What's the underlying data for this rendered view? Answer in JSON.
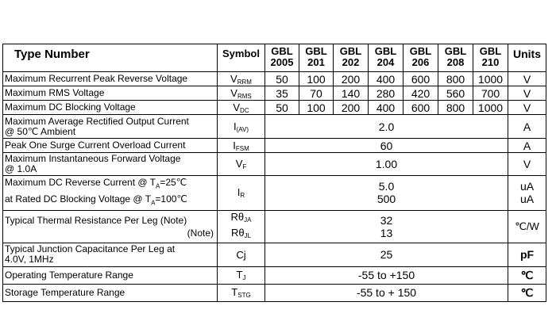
{
  "header": {
    "type_number": "Type Number",
    "symbol": "Symbol",
    "units": "Units",
    "models": [
      {
        "top": "GBL",
        "bottom": "2005"
      },
      {
        "top": "GBL",
        "bottom": "201"
      },
      {
        "top": "GBL",
        "bottom": "202"
      },
      {
        "top": "GBL",
        "bottom": "204"
      },
      {
        "top": "GBL",
        "bottom": "206"
      },
      {
        "top": "GBL",
        "bottom": "208"
      },
      {
        "top": "GBL",
        "bottom": "210"
      }
    ]
  },
  "rows": {
    "vrrm": {
      "label": "Maximum Recurrent Peak Reverse Voltage",
      "sym": "V",
      "sub": "RRM",
      "values": [
        "50",
        "100",
        "200",
        "400",
        "600",
        "800",
        "1000"
      ],
      "unit": "V"
    },
    "vrms": {
      "label": "Maximum RMS Voltage",
      "sym": "V",
      "sub": "RMS",
      "values": [
        "35",
        "70",
        "140",
        "280",
        "420",
        "560",
        "700"
      ],
      "unit": "V"
    },
    "vdc": {
      "label": "Maximum DC Blocking Voltage",
      "sym": "V",
      "sub": "DC",
      "values": [
        "50",
        "100",
        "200",
        "400",
        "600",
        "800",
        "1000"
      ],
      "unit": "V"
    },
    "iav": {
      "label_line1": "Maximum Average Rectified Output Current",
      "label_line2": "@ 50℃  Ambient",
      "sym": "I",
      "sub": "(AV)",
      "value": "2.0",
      "unit": "A"
    },
    "ifsm": {
      "label": "Peak One Surge Current Overload Current",
      "sym": "I",
      "sub": "FSM",
      "value": "60",
      "unit": "A"
    },
    "vf": {
      "label_line1": "Maximum Instantaneous Forward Voltage",
      "label_line2": "@ 1.0A",
      "sym": "V",
      "sub": "F",
      "value": "1.00",
      "unit": "V"
    },
    "ir": {
      "line1_pre": "Maximum DC Reverse Current @ T",
      "line1_sub": "A",
      "line1_post": "=25℃",
      "line2_pre": "at Rated DC Blocking Voltage @ T",
      "line2_sub": "A",
      "line2_post": "=100℃",
      "sym": "I",
      "sub": "R",
      "value1": "5.0",
      "value2": "500",
      "unit1": "uA",
      "unit2": "uA"
    },
    "rth": {
      "label": "Typical Thermal Resistance Per Leg (Note)",
      "note": "(Note)",
      "sym1": "Rθ",
      "sub1": "JA",
      "sym2": "Rθ",
      "sub2": "JL",
      "value1": "32",
      "value2": "13",
      "unit": "℃/W"
    },
    "cj": {
      "label_line1": "Typical Junction Capacitance Per Leg at",
      "label_line2": "4.0V, 1MHz",
      "sym": "Cj",
      "value": "25",
      "unit": "pF"
    },
    "tj": {
      "label": "Operating Temperature Range",
      "sym": "T",
      "sub": "J",
      "value": "-55 to +150",
      "unit": "℃"
    },
    "tstg": {
      "label": "Storage Temperature Range",
      "sym": "T",
      "sub": "STG",
      "value": "-55 to + 150",
      "unit": "℃"
    }
  }
}
